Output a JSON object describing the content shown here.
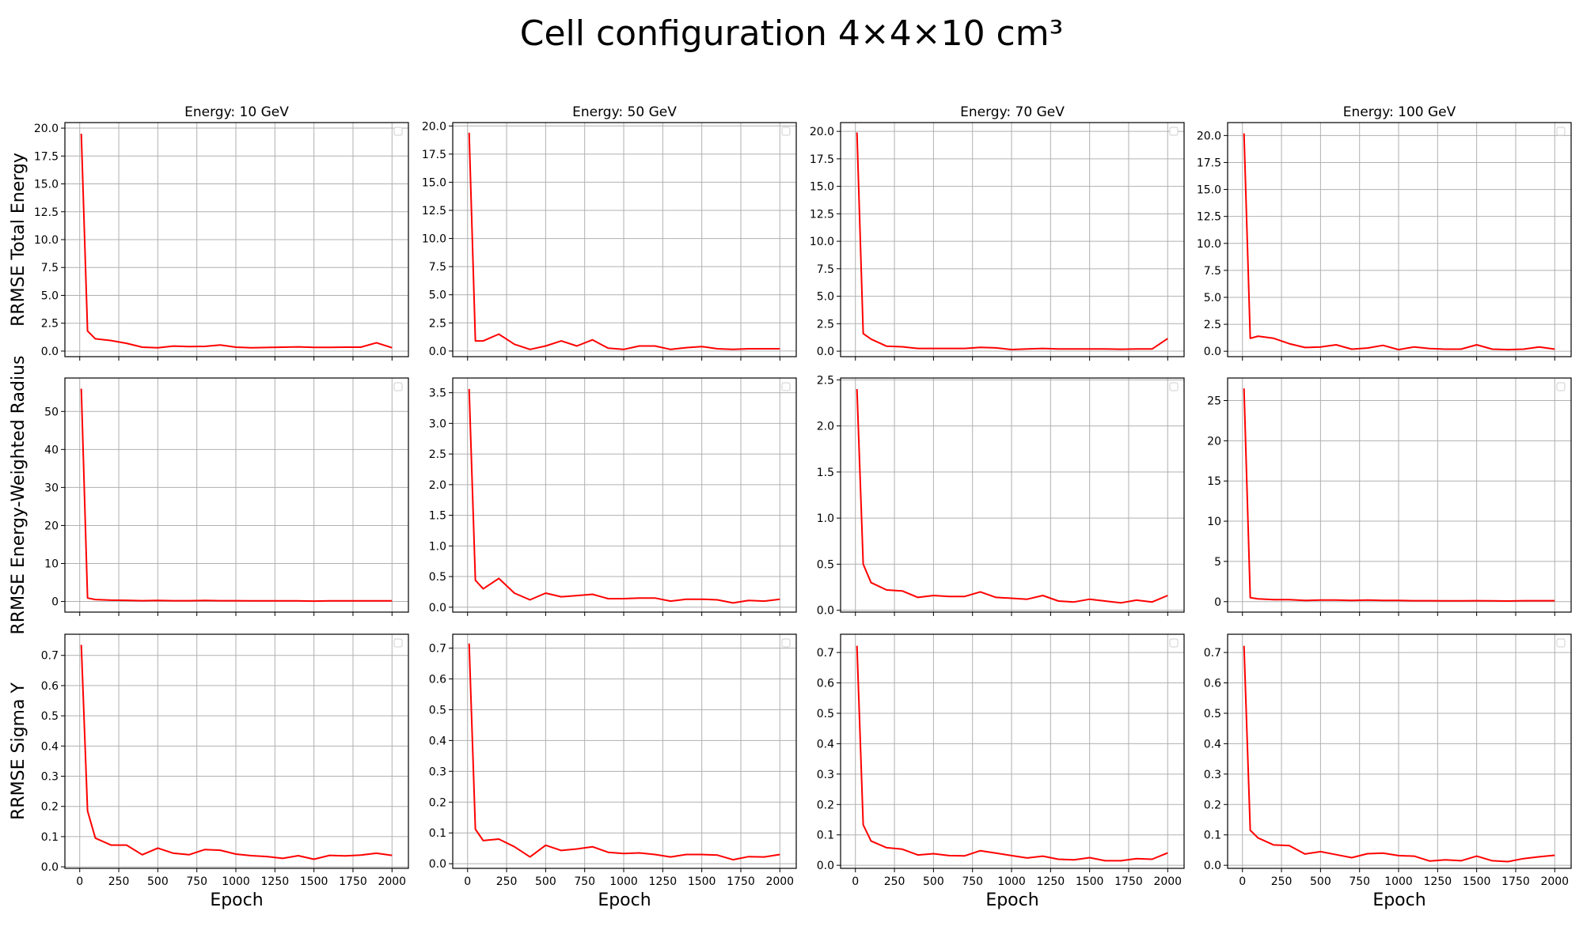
{
  "figure": {
    "title": "Cell configuration 4×4×10 cm³",
    "row_labels": [
      "RRMSE Total Energy",
      "RRMSE Energy-Weighted Radius",
      "RRMSE Sigma Y"
    ],
    "xlabel": "Epoch",
    "line_color": "#ff0000"
  },
  "chart_data": [
    {
      "type": "line",
      "title": "Energy: 10 GeV",
      "ylabel": "RRMSE Total Energy",
      "xlabel": "",
      "x": [
        10,
        50,
        100,
        200,
        300,
        400,
        500,
        600,
        700,
        800,
        900,
        1000,
        1100,
        1200,
        1300,
        1400,
        1500,
        1600,
        1700,
        1800,
        1900,
        2000
      ],
      "series": [
        {
          "values": [
            19.5,
            1.8,
            1.1,
            0.95,
            0.7,
            0.35,
            0.3,
            0.45,
            0.4,
            0.42,
            0.55,
            0.35,
            0.3,
            0.32,
            0.35,
            0.38,
            0.33,
            0.33,
            0.35,
            0.35,
            0.75,
            0.3
          ]
        }
      ],
      "xlim": [
        -95,
        2105
      ],
      "ylim": [
        -0.5,
        20.5
      ],
      "yticks": [
        0,
        2.5,
        5,
        7.5,
        10,
        12.5,
        15,
        17.5,
        20
      ],
      "ytick_labels": [
        "0.0",
        "2.5",
        "5.0",
        "7.5",
        "10.0",
        "12.5",
        "15.0",
        "17.5",
        "20.0"
      ],
      "xticks": [
        0,
        250,
        500,
        750,
        1000,
        1250,
        1500,
        1750,
        2000
      ],
      "xtick_labels_shown": false,
      "grid": true
    },
    {
      "type": "line",
      "title": "Energy: 50 GeV",
      "ylabel": "",
      "xlabel": "",
      "x": [
        10,
        50,
        100,
        200,
        300,
        400,
        500,
        600,
        700,
        800,
        900,
        1000,
        1100,
        1200,
        1300,
        1400,
        1500,
        1600,
        1700,
        1800,
        1900,
        2000
      ],
      "series": [
        {
          "values": [
            19.4,
            0.9,
            0.9,
            1.5,
            0.6,
            0.15,
            0.45,
            0.9,
            0.45,
            1.0,
            0.25,
            0.15,
            0.45,
            0.45,
            0.15,
            0.3,
            0.4,
            0.2,
            0.15,
            0.2,
            0.2,
            0.2
          ]
        }
      ],
      "xlim": [
        -95,
        2105
      ],
      "ylim": [
        -0.5,
        20.3
      ],
      "yticks": [
        0,
        2.5,
        5,
        7.5,
        10,
        12.5,
        15,
        17.5,
        20
      ],
      "ytick_labels": [
        "0.0",
        "2.5",
        "5.0",
        "7.5",
        "10.0",
        "12.5",
        "15.0",
        "17.5",
        "20.0"
      ],
      "xticks": [
        0,
        250,
        500,
        750,
        1000,
        1250,
        1500,
        1750,
        2000
      ],
      "xtick_labels_shown": false,
      "grid": true
    },
    {
      "type": "line",
      "title": "Energy: 70 GeV",
      "ylabel": "",
      "xlabel": "",
      "x": [
        10,
        50,
        100,
        200,
        300,
        400,
        500,
        600,
        700,
        800,
        900,
        1000,
        1100,
        1200,
        1300,
        1400,
        1500,
        1600,
        1700,
        1800,
        1900,
        2000
      ],
      "series": [
        {
          "values": [
            19.9,
            1.6,
            1.1,
            0.45,
            0.4,
            0.25,
            0.25,
            0.25,
            0.25,
            0.35,
            0.3,
            0.15,
            0.2,
            0.25,
            0.2,
            0.2,
            0.2,
            0.2,
            0.18,
            0.2,
            0.2,
            1.15
          ]
        }
      ],
      "xlim": [
        -95,
        2105
      ],
      "ylim": [
        -0.5,
        20.8
      ],
      "yticks": [
        0,
        2.5,
        5,
        7.5,
        10,
        12.5,
        15,
        17.5,
        20
      ],
      "ytick_labels": [
        "0.0",
        "2.5",
        "5.0",
        "7.5",
        "10.0",
        "12.5",
        "15.0",
        "17.5",
        "20.0"
      ],
      "xticks": [
        0,
        250,
        500,
        750,
        1000,
        1250,
        1500,
        1750,
        2000
      ],
      "xtick_labels_shown": false,
      "grid": true
    },
    {
      "type": "line",
      "title": "Energy: 100 GeV",
      "ylabel": "",
      "xlabel": "",
      "x": [
        10,
        50,
        100,
        200,
        300,
        400,
        500,
        600,
        700,
        800,
        900,
        1000,
        1100,
        1200,
        1300,
        1400,
        1500,
        1600,
        1700,
        1800,
        1900,
        2000
      ],
      "series": [
        {
          "values": [
            20.2,
            1.2,
            1.4,
            1.2,
            0.7,
            0.35,
            0.4,
            0.6,
            0.2,
            0.3,
            0.55,
            0.15,
            0.4,
            0.25,
            0.2,
            0.2,
            0.6,
            0.2,
            0.15,
            0.2,
            0.4,
            0.2
          ]
        }
      ],
      "xlim": [
        -95,
        2105
      ],
      "ylim": [
        -0.5,
        21.2
      ],
      "yticks": [
        0,
        2.5,
        5,
        7.5,
        10,
        12.5,
        15,
        17.5,
        20
      ],
      "ytick_labels": [
        "0.0",
        "2.5",
        "5.0",
        "7.5",
        "10.0",
        "12.5",
        "15.0",
        "17.5",
        "20.0"
      ],
      "xticks": [
        0,
        250,
        500,
        750,
        1000,
        1250,
        1500,
        1750,
        2000
      ],
      "xtick_labels_shown": false,
      "grid": true
    },
    {
      "type": "line",
      "title": "",
      "ylabel": "RRMSE Energy-Weighted Radius",
      "xlabel": "",
      "x": [
        10,
        50,
        100,
        200,
        300,
        400,
        500,
        600,
        700,
        800,
        900,
        1000,
        1100,
        1200,
        1300,
        1400,
        1500,
        1600,
        1700,
        1800,
        1900,
        2000
      ],
      "series": [
        {
          "values": [
            56,
            0.9,
            0.5,
            0.35,
            0.3,
            0.2,
            0.25,
            0.2,
            0.2,
            0.25,
            0.2,
            0.2,
            0.15,
            0.15,
            0.15,
            0.15,
            0.1,
            0.15,
            0.15,
            0.15,
            0.15,
            0.15
          ]
        }
      ],
      "xlim": [
        -95,
        2105
      ],
      "ylim": [
        -2.8,
        58.8
      ],
      "yticks": [
        0,
        10,
        20,
        30,
        40,
        50
      ],
      "ytick_labels": [
        "0",
        "10",
        "20",
        "30",
        "40",
        "50"
      ],
      "xticks": [
        0,
        250,
        500,
        750,
        1000,
        1250,
        1500,
        1750,
        2000
      ],
      "xtick_labels_shown": false,
      "grid": true
    },
    {
      "type": "line",
      "title": "",
      "ylabel": "",
      "xlabel": "",
      "x": [
        10,
        50,
        100,
        200,
        300,
        400,
        500,
        600,
        700,
        800,
        900,
        1000,
        1100,
        1200,
        1300,
        1400,
        1500,
        1600,
        1700,
        1800,
        1900,
        2000
      ],
      "series": [
        {
          "values": [
            3.56,
            0.44,
            0.3,
            0.47,
            0.23,
            0.12,
            0.23,
            0.17,
            0.19,
            0.21,
            0.14,
            0.14,
            0.15,
            0.15,
            0.1,
            0.13,
            0.13,
            0.12,
            0.07,
            0.11,
            0.1,
            0.13
          ]
        }
      ],
      "xlim": [
        -95,
        2105
      ],
      "ylim": [
        -0.08,
        3.74
      ],
      "yticks": [
        0,
        0.5,
        1,
        1.5,
        2,
        2.5,
        3,
        3.5
      ],
      "ytick_labels": [
        "0.0",
        "0.5",
        "1.0",
        "1.5",
        "2.0",
        "2.5",
        "3.0",
        "3.5"
      ],
      "xticks": [
        0,
        250,
        500,
        750,
        1000,
        1250,
        1500,
        1750,
        2000
      ],
      "xtick_labels_shown": false,
      "grid": true
    },
    {
      "type": "line",
      "title": "",
      "ylabel": "",
      "xlabel": "",
      "x": [
        10,
        50,
        100,
        200,
        300,
        400,
        500,
        600,
        700,
        800,
        900,
        1000,
        1100,
        1200,
        1300,
        1400,
        1500,
        1600,
        1700,
        1800,
        1900,
        2000
      ],
      "series": [
        {
          "values": [
            2.4,
            0.5,
            0.3,
            0.22,
            0.21,
            0.14,
            0.16,
            0.15,
            0.15,
            0.2,
            0.14,
            0.13,
            0.12,
            0.16,
            0.1,
            0.09,
            0.12,
            0.1,
            0.08,
            0.11,
            0.09,
            0.16
          ]
        }
      ],
      "xlim": [
        -95,
        2105
      ],
      "ylim": [
        -0.02,
        2.52
      ],
      "yticks": [
        0,
        0.5,
        1,
        1.5,
        2,
        2.5
      ],
      "ytick_labels": [
        "0.0",
        "0.5",
        "1.0",
        "1.5",
        "2.0",
        "2.5"
      ],
      "xticks": [
        0,
        250,
        500,
        750,
        1000,
        1250,
        1500,
        1750,
        2000
      ],
      "xtick_labels_shown": false,
      "grid": true
    },
    {
      "type": "line",
      "title": "",
      "ylabel": "",
      "xlabel": "",
      "x": [
        10,
        50,
        100,
        200,
        300,
        400,
        500,
        600,
        700,
        800,
        900,
        1000,
        1100,
        1200,
        1300,
        1400,
        1500,
        1600,
        1700,
        1800,
        1900,
        2000
      ],
      "series": [
        {
          "values": [
            26.5,
            0.5,
            0.35,
            0.25,
            0.25,
            0.15,
            0.2,
            0.2,
            0.15,
            0.2,
            0.15,
            0.15,
            0.12,
            0.12,
            0.1,
            0.1,
            0.12,
            0.1,
            0.08,
            0.12,
            0.12,
            0.12
          ]
        }
      ],
      "xlim": [
        -95,
        2105
      ],
      "ylim": [
        -1.3,
        27.8
      ],
      "yticks": [
        0,
        5,
        10,
        15,
        20,
        25
      ],
      "ytick_labels": [
        "0",
        "5",
        "10",
        "15",
        "20",
        "25"
      ],
      "xticks": [
        0,
        250,
        500,
        750,
        1000,
        1250,
        1500,
        1750,
        2000
      ],
      "xtick_labels_shown": false,
      "grid": true
    },
    {
      "type": "line",
      "title": "",
      "ylabel": "RRMSE Sigma Y",
      "xlabel": "Epoch",
      "x": [
        10,
        50,
        100,
        200,
        300,
        400,
        500,
        600,
        700,
        800,
        900,
        1000,
        1100,
        1200,
        1300,
        1400,
        1500,
        1600,
        1700,
        1800,
        1900,
        2000
      ],
      "series": [
        {
          "values": [
            0.735,
            0.185,
            0.095,
            0.072,
            0.072,
            0.04,
            0.062,
            0.045,
            0.04,
            0.057,
            0.055,
            0.042,
            0.037,
            0.034,
            0.028,
            0.037,
            0.025,
            0.038,
            0.036,
            0.039,
            0.045,
            0.038
          ]
        }
      ],
      "xlim": [
        -95,
        2105
      ],
      "ylim": [
        -0.005,
        0.77
      ],
      "yticks": [
        0,
        0.1,
        0.2,
        0.3,
        0.4,
        0.5,
        0.6,
        0.7
      ],
      "ytick_labels": [
        "0.0",
        "0.1",
        "0.2",
        "0.3",
        "0.4",
        "0.5",
        "0.6",
        "0.7"
      ],
      "xticks": [
        0,
        250,
        500,
        750,
        1000,
        1250,
        1500,
        1750,
        2000
      ],
      "xtick_labels": [
        "0",
        "250",
        "500",
        "750",
        "1000",
        "1250",
        "1500",
        "1750",
        "2000"
      ],
      "xtick_labels_shown": true,
      "grid": true
    },
    {
      "type": "line",
      "title": "",
      "ylabel": "",
      "xlabel": "Epoch",
      "x": [
        10,
        50,
        100,
        200,
        300,
        400,
        500,
        600,
        700,
        800,
        900,
        1000,
        1100,
        1200,
        1300,
        1400,
        1500,
        1600,
        1700,
        1800,
        1900,
        2000
      ],
      "series": [
        {
          "values": [
            0.715,
            0.112,
            0.075,
            0.08,
            0.055,
            0.022,
            0.06,
            0.043,
            0.048,
            0.055,
            0.037,
            0.033,
            0.035,
            0.03,
            0.022,
            0.03,
            0.03,
            0.028,
            0.013,
            0.023,
            0.022,
            0.03
          ]
        }
      ],
      "xlim": [
        -95,
        2105
      ],
      "ylim": [
        -0.015,
        0.745
      ],
      "yticks": [
        0,
        0.1,
        0.2,
        0.3,
        0.4,
        0.5,
        0.6,
        0.7
      ],
      "ytick_labels": [
        "0.0",
        "0.1",
        "0.2",
        "0.3",
        "0.4",
        "0.5",
        "0.6",
        "0.7"
      ],
      "xticks": [
        0,
        250,
        500,
        750,
        1000,
        1250,
        1500,
        1750,
        2000
      ],
      "xtick_labels": [
        "0",
        "250",
        "500",
        "750",
        "1000",
        "1250",
        "1500",
        "1750",
        "2000"
      ],
      "xtick_labels_shown": true,
      "grid": true
    },
    {
      "type": "line",
      "title": "",
      "ylabel": "",
      "xlabel": "Epoch",
      "x": [
        10,
        50,
        100,
        200,
        300,
        400,
        500,
        600,
        700,
        800,
        900,
        1000,
        1100,
        1200,
        1300,
        1400,
        1500,
        1600,
        1700,
        1800,
        1900,
        2000
      ],
      "series": [
        {
          "values": [
            0.722,
            0.133,
            0.08,
            0.058,
            0.053,
            0.034,
            0.038,
            0.032,
            0.031,
            0.048,
            0.04,
            0.032,
            0.024,
            0.03,
            0.02,
            0.018,
            0.025,
            0.015,
            0.015,
            0.022,
            0.02,
            0.041
          ]
        }
      ],
      "xlim": [
        -95,
        2105
      ],
      "ylim": [
        -0.01,
        0.76
      ],
      "yticks": [
        0,
        0.1,
        0.2,
        0.3,
        0.4,
        0.5,
        0.6,
        0.7
      ],
      "ytick_labels": [
        "0.0",
        "0.1",
        "0.2",
        "0.3",
        "0.4",
        "0.5",
        "0.6",
        "0.7"
      ],
      "xticks": [
        0,
        250,
        500,
        750,
        1000,
        1250,
        1500,
        1750,
        2000
      ],
      "xtick_labels": [
        "0",
        "250",
        "500",
        "750",
        "1000",
        "1250",
        "1500",
        "1750",
        "2000"
      ],
      "xtick_labels_shown": true,
      "grid": true
    },
    {
      "type": "line",
      "title": "",
      "ylabel": "",
      "xlabel": "Epoch",
      "x": [
        10,
        50,
        100,
        200,
        300,
        400,
        500,
        600,
        700,
        800,
        900,
        1000,
        1100,
        1200,
        1300,
        1400,
        1500,
        1600,
        1700,
        1800,
        1900,
        2000
      ],
      "series": [
        {
          "values": [
            0.722,
            0.115,
            0.09,
            0.067,
            0.065,
            0.037,
            0.045,
            0.035,
            0.025,
            0.038,
            0.04,
            0.032,
            0.03,
            0.014,
            0.018,
            0.015,
            0.03,
            0.015,
            0.012,
            0.022,
            0.028,
            0.033
          ]
        }
      ],
      "xlim": [
        -95,
        2105
      ],
      "ylim": [
        -0.01,
        0.76
      ],
      "yticks": [
        0,
        0.1,
        0.2,
        0.3,
        0.4,
        0.5,
        0.6,
        0.7
      ],
      "ytick_labels": [
        "0.0",
        "0.1",
        "0.2",
        "0.3",
        "0.4",
        "0.5",
        "0.6",
        "0.7"
      ],
      "xticks": [
        0,
        250,
        500,
        750,
        1000,
        1250,
        1500,
        1750,
        2000
      ],
      "xtick_labels": [
        "0",
        "250",
        "500",
        "750",
        "1000",
        "1250",
        "1500",
        "1750",
        "2000"
      ],
      "xtick_labels_shown": true,
      "grid": true
    }
  ]
}
